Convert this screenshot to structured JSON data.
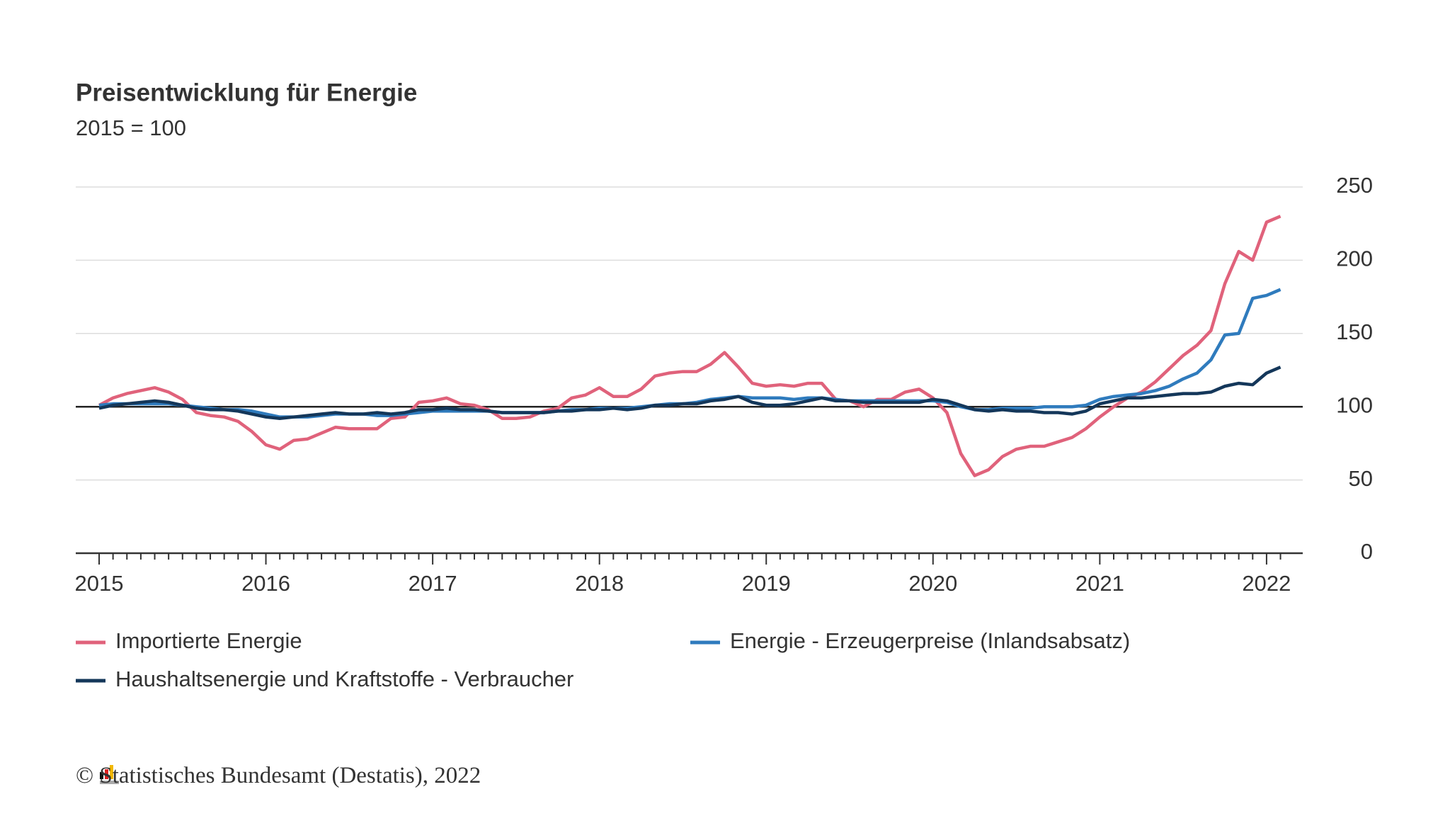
{
  "chart_data": {
    "type": "line",
    "title": "Preisentwicklung für Energie",
    "subtitle": "2015 = 100",
    "source": "© Statistisches Bundesamt (Destatis), 2022",
    "categories": [
      "2015",
      null,
      null,
      null,
      null,
      null,
      null,
      null,
      null,
      null,
      null,
      null,
      "2016",
      null,
      null,
      null,
      null,
      null,
      null,
      null,
      null,
      null,
      null,
      null,
      "2017",
      null,
      null,
      null,
      null,
      null,
      null,
      null,
      null,
      null,
      null,
      null,
      "2018",
      null,
      null,
      null,
      null,
      null,
      null,
      null,
      null,
      null,
      null,
      null,
      "2019",
      null,
      null,
      null,
      null,
      null,
      null,
      null,
      null,
      null,
      null,
      null,
      "2020",
      null,
      null,
      null,
      null,
      null,
      null,
      null,
      null,
      null,
      null,
      null,
      "2021",
      null,
      null,
      null,
      null,
      null,
      null,
      null,
      null,
      null,
      null,
      null,
      "2022",
      null
    ],
    "series": [
      {
        "name": "Importierte Energie",
        "color": "#e0627b",
        "values": [
          101,
          106,
          109,
          111,
          113,
          110,
          105,
          96,
          94,
          93,
          90,
          83,
          74,
          71,
          77,
          78,
          82,
          86,
          85,
          85,
          85,
          92,
          93,
          103,
          104,
          106,
          102,
          101,
          98,
          92,
          92,
          93,
          97,
          99,
          106,
          108,
          113,
          107,
          107,
          112,
          121,
          123,
          124,
          124,
          129,
          137,
          127,
          116,
          114,
          115,
          114,
          116,
          116,
          105,
          104,
          100,
          105,
          105,
          110,
          112,
          106,
          96,
          68,
          53,
          57,
          66,
          71,
          73,
          73,
          76,
          79,
          85,
          93,
          100,
          106,
          110,
          117,
          126,
          135,
          142,
          152,
          184,
          206,
          200,
          226,
          230
        ]
      },
      {
        "name": "Energie - Erzeugerpreise (Inlandsabsatz)",
        "color": "#2f7bbd",
        "values": [
          101,
          102,
          102,
          102,
          102,
          102,
          101,
          100,
          99,
          98,
          98,
          97,
          95,
          93,
          93,
          93,
          94,
          95,
          95,
          95,
          94,
          94,
          95,
          96,
          97,
          97,
          97,
          97,
          97,
          96,
          96,
          96,
          96,
          97,
          98,
          98,
          99,
          99,
          99,
          100,
          101,
          102,
          102,
          103,
          105,
          106,
          107,
          106,
          106,
          106,
          105,
          106,
          106,
          105,
          104,
          104,
          104,
          104,
          104,
          104,
          104,
          103,
          100,
          98,
          98,
          99,
          99,
          99,
          100,
          100,
          100,
          101,
          105,
          107,
          108,
          109,
          111,
          114,
          119,
          123,
          132,
          149,
          150,
          174,
          176,
          180
        ]
      },
      {
        "name": "Haushaltsenergie und Kraftstoffe - Verbraucher",
        "color": "#14375a",
        "values": [
          99,
          101,
          102,
          103,
          104,
          103,
          101,
          99,
          98,
          98,
          97,
          95,
          93,
          92,
          93,
          94,
          95,
          96,
          95,
          95,
          96,
          95,
          96,
          98,
          98,
          99,
          98,
          98,
          97,
          96,
          96,
          96,
          96,
          97,
          97,
          98,
          98,
          99,
          98,
          99,
          101,
          101,
          102,
          102,
          104,
          105,
          107,
          103,
          101,
          101,
          102,
          104,
          106,
          104,
          104,
          103,
          103,
          103,
          103,
          103,
          105,
          104,
          101,
          98,
          97,
          98,
          97,
          97,
          96,
          96,
          95,
          97,
          102,
          104,
          106,
          106,
          107,
          108,
          109,
          109,
          110,
          114,
          116,
          115,
          123,
          127
        ]
      }
    ],
    "ylim": [
      0,
      250
    ],
    "yticks": [
      0,
      50,
      100,
      150,
      200,
      250
    ],
    "reference_line": 100,
    "grid": true
  }
}
